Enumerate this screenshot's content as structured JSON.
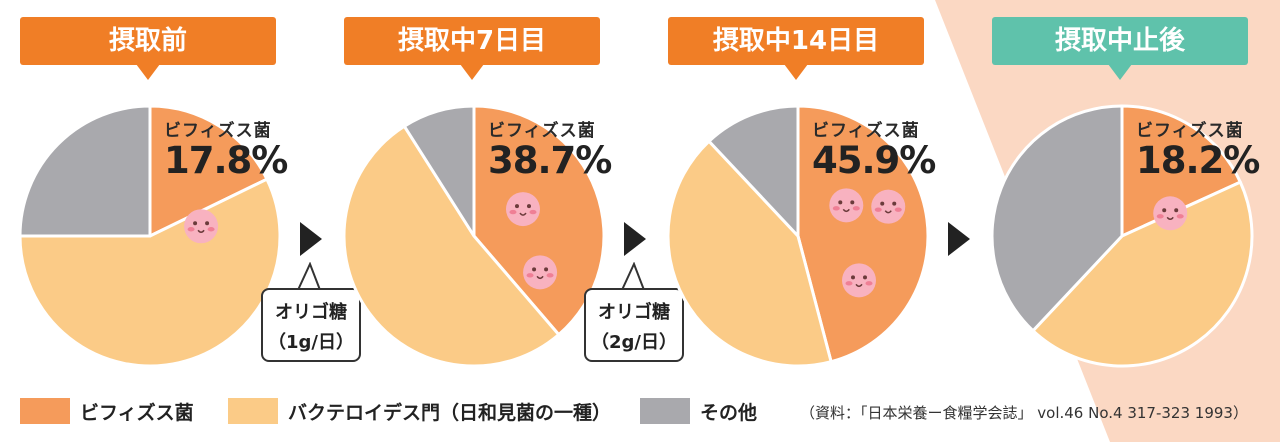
{
  "colors": {
    "bifidobacteria": "#f59b5b",
    "bacteroidetes": "#fbcb87",
    "other": "#a9a9ad",
    "tag_orange": "#f07e26",
    "tag_teal": "#5fc2ab",
    "bg_wedge": "#fbd8c3",
    "face": "#f8b2c0"
  },
  "chart_data": [
    {
      "type": "pie",
      "title": "摂取前",
      "label": "ビフィズス菌",
      "value_text": "17.8%",
      "slices": [
        {
          "name": "ビフィズス菌",
          "value": 17.8
        },
        {
          "name": "バクテロイデス門（日和見菌の一種）",
          "value": 57.2
        },
        {
          "name": "その他",
          "value": 25.0
        }
      ]
    },
    {
      "type": "pie",
      "title": "摂取中7日目",
      "label": "ビフィズス菌",
      "value_text": "38.7%",
      "slices": [
        {
          "name": "ビフィズス菌",
          "value": 38.7
        },
        {
          "name": "バクテロイデス門（日和見菌の一種）",
          "value": 52.3
        },
        {
          "name": "その他",
          "value": 9.0
        }
      ]
    },
    {
      "type": "pie",
      "title": "摂取中14日目",
      "label": "ビフィズス菌",
      "value_text": "45.9%",
      "slices": [
        {
          "name": "ビフィズス菌",
          "value": 45.9
        },
        {
          "name": "バクテロイデス門（日和見菌の一種）",
          "value": 42.1
        },
        {
          "name": "その他",
          "value": 12.0
        }
      ]
    },
    {
      "type": "pie",
      "title": "摂取中止後",
      "label": "ビフィズス菌",
      "value_text": "18.2%",
      "slices": [
        {
          "name": "ビフィズス菌",
          "value": 18.2
        },
        {
          "name": "バクテロイデス門（日和見菌の一種）",
          "value": 43.8
        },
        {
          "name": "その他",
          "value": 38.0
        }
      ]
    }
  ],
  "callouts": [
    {
      "line1": "オリゴ糖",
      "line2": "（1g/日）"
    },
    {
      "line1": "オリゴ糖",
      "line2": "（2g/日）"
    }
  ],
  "legend": [
    "ビフィズス菌",
    "バクテロイデス門（日和見菌の一種）",
    "その他"
  ],
  "source": "（資料：「日本栄養ー食糧学会誌」 vol.46 No.4 317-323 1993）"
}
